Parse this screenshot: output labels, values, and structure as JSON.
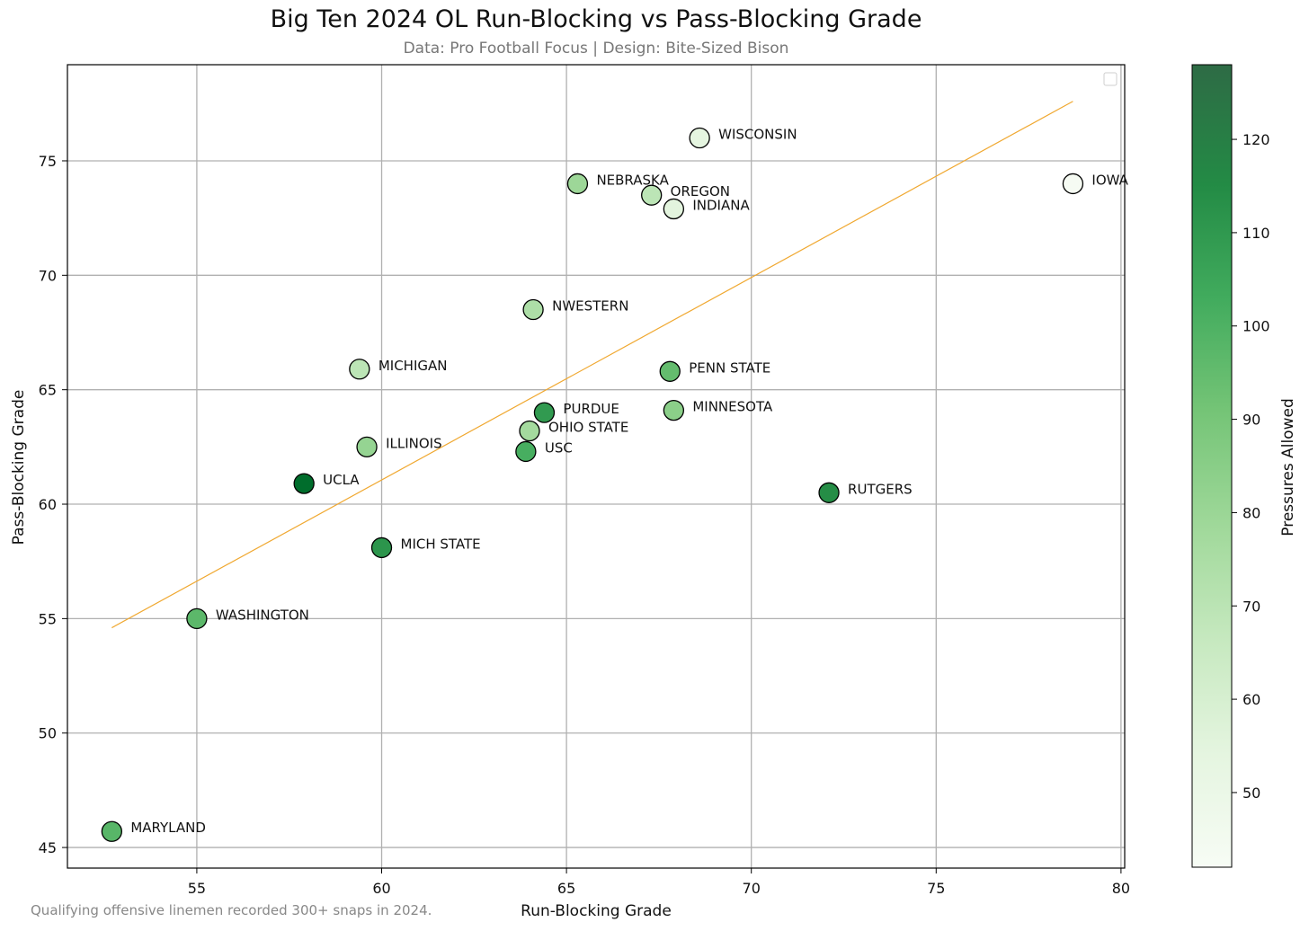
{
  "chart_data": {
    "type": "scatter",
    "title": "Big Ten 2024 OL Run-Blocking vs Pass-Blocking Grade",
    "subtitle": "Data: Pro Football Focus | Design: Bite-Sized Bison",
    "footnote": "Qualifying offensive linemen recorded 300+ snaps in 2024.",
    "xlabel": "Run-Blocking Grade",
    "ylabel": "Pass-Blocking Grade",
    "colorbar_label": "Pressures Allowed",
    "xlim": [
      51.5,
      80.1
    ],
    "ylim": [
      44.1,
      79.2
    ],
    "xticks": [
      55,
      60,
      65,
      70,
      75,
      80
    ],
    "yticks": [
      45,
      50,
      55,
      60,
      65,
      70,
      75
    ],
    "colorbar_range": [
      42,
      128
    ],
    "colorbar_ticks": [
      50,
      60,
      70,
      80,
      90,
      100,
      110,
      120
    ],
    "grid": true,
    "legend": "top-right (empty)",
    "colormap": [
      "#f7fcf5",
      "#e5f5e0",
      "#c7e9c0",
      "#a1d99b",
      "#74c476",
      "#41ab5d",
      "#238b45",
      "#006d2c"
    ],
    "trendline": {
      "color": "#f0a830",
      "x": [
        52.7,
        78.7
      ],
      "y": [
        54.6,
        77.6
      ]
    },
    "points": [
      {
        "label": "WISCONSIN",
        "x": 68.6,
        "y": 76.0,
        "pressures": 54
      },
      {
        "label": "NEBRASKA",
        "x": 65.3,
        "y": 74.0,
        "pressures": 80
      },
      {
        "label": "OREGON",
        "x": 67.3,
        "y": 73.5,
        "pressures": 70
      },
      {
        "label": "INDIANA",
        "x": 67.9,
        "y": 72.9,
        "pressures": 55
      },
      {
        "label": "IOWA",
        "x": 78.7,
        "y": 74.0,
        "pressures": 43
      },
      {
        "label": "NWESTERN",
        "x": 64.1,
        "y": 68.5,
        "pressures": 75
      },
      {
        "label": "MICHIGAN",
        "x": 59.4,
        "y": 65.9,
        "pressures": 70
      },
      {
        "label": "PENN STATE",
        "x": 67.8,
        "y": 65.8,
        "pressures": 95
      },
      {
        "label": "MINNESOTA",
        "x": 67.9,
        "y": 64.1,
        "pressures": 85
      },
      {
        "label": "PURDUE",
        "x": 64.4,
        "y": 64.0,
        "pressures": 110
      },
      {
        "label": "OHIO STATE",
        "x": 64.0,
        "y": 63.2,
        "pressures": 78
      },
      {
        "label": "ILLINOIS",
        "x": 59.6,
        "y": 62.5,
        "pressures": 82
      },
      {
        "label": "USC",
        "x": 63.9,
        "y": 62.3,
        "pressures": 102
      },
      {
        "label": "UCLA",
        "x": 57.9,
        "y": 60.9,
        "pressures": 128
      },
      {
        "label": "RUTGERS",
        "x": 72.1,
        "y": 60.5,
        "pressures": 115
      },
      {
        "label": "MICH STATE",
        "x": 60.0,
        "y": 58.1,
        "pressures": 112
      },
      {
        "label": "WASHINGTON",
        "x": 55.0,
        "y": 55.0,
        "pressures": 97
      },
      {
        "label": "MARYLAND",
        "x": 52.7,
        "y": 45.7,
        "pressures": 98
      }
    ]
  }
}
